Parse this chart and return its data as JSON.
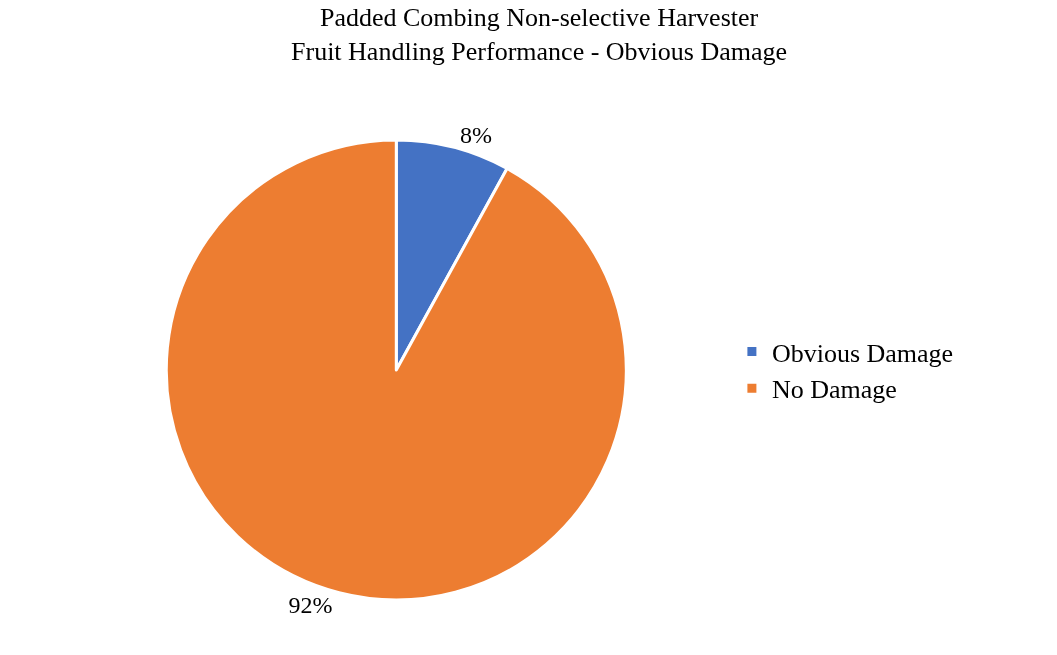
{
  "chart_data": {
    "type": "pie",
    "title": "Padded Combing Non-selective Harvester Fruit Handling Performance - Obvious Damage",
    "categories": [
      "Obvious Damage",
      "No Damage"
    ],
    "values": [
      8,
      92
    ],
    "colors": [
      "#4472c4",
      "#ed7d31"
    ],
    "value_labels": [
      "8%",
      "92%"
    ],
    "legend": "right"
  }
}
